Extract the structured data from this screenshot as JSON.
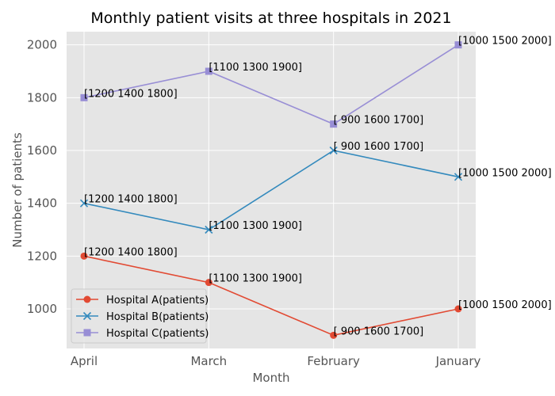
{
  "chart_data": {
    "type": "line",
    "title": "Monthly patient visits at three hospitals in 2021",
    "xlabel": "Month",
    "ylabel": "Number of patients",
    "categories": [
      "April",
      "March",
      "February",
      "January"
    ],
    "ylim": [
      850,
      2050
    ],
    "yticks": [
      1000,
      1200,
      1400,
      1600,
      1800,
      2000
    ],
    "grid": true,
    "legend_position": "lower-left",
    "point_labels": [
      "[1200 1400 1800]",
      "[1100 1300 1900]",
      "[ 900 1600 1700]",
      "[1000 1500 2000]"
    ],
    "series": [
      {
        "name": "Hospital A(patients)",
        "values": [
          1200,
          1100,
          900,
          1000
        ],
        "color": "#E24A33",
        "marker": "circle"
      },
      {
        "name": "Hospital B(patients)",
        "values": [
          1400,
          1300,
          1600,
          1500
        ],
        "color": "#348ABD",
        "marker": "x"
      },
      {
        "name": "Hospital C(patients)",
        "values": [
          1800,
          1900,
          1700,
          2000
        ],
        "color": "#988ED5",
        "marker": "square"
      }
    ]
  }
}
